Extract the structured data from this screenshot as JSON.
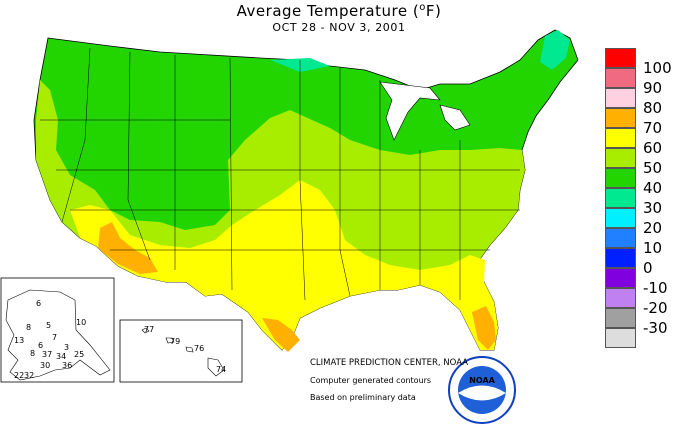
{
  "header": {
    "title": "Average Temperature",
    "unit": "F",
    "date_range": "OCT 28 - NOV  3, 2001"
  },
  "legend": [
    {
      "label": "100",
      "color": "#ff0000"
    },
    {
      "label": "90",
      "color": "#f06a80"
    },
    {
      "label": "80",
      "color": "#ffd0e0"
    },
    {
      "label": "70",
      "color": "#ffb000"
    },
    {
      "label": "60",
      "color": "#ffff00"
    },
    {
      "label": "50",
      "color": "#a8ec00"
    },
    {
      "label": "40",
      "color": "#22d400"
    },
    {
      "label": "30",
      "color": "#00e890"
    },
    {
      "label": "20",
      "color": "#00f0ff"
    },
    {
      "label": "10",
      "color": "#2080ff"
    },
    {
      "label": "0",
      "color": "#0020ff"
    },
    {
      "label": "-10",
      "color": "#8000e0"
    },
    {
      "label": "-20",
      "color": "#c080f0"
    },
    {
      "label": "-30",
      "color": "#a0a0a0"
    },
    {
      "label": "",
      "color": "#dddddd"
    }
  ],
  "credits": {
    "center": "CLIMATE PREDICTION CENTER, NOAA",
    "line1": "Computer generated contours",
    "line2": "Based on preliminary data"
  },
  "alaska_labels": [
    "6",
    "8",
    "10",
    "5",
    "7",
    "3",
    "6",
    "13",
    "8",
    "37",
    "34",
    "25",
    "30",
    "36",
    "32",
    "22"
  ],
  "hawaii_labels": [
    "77",
    "79",
    "76",
    "74"
  ],
  "logo": {
    "text": "NOAA"
  }
}
